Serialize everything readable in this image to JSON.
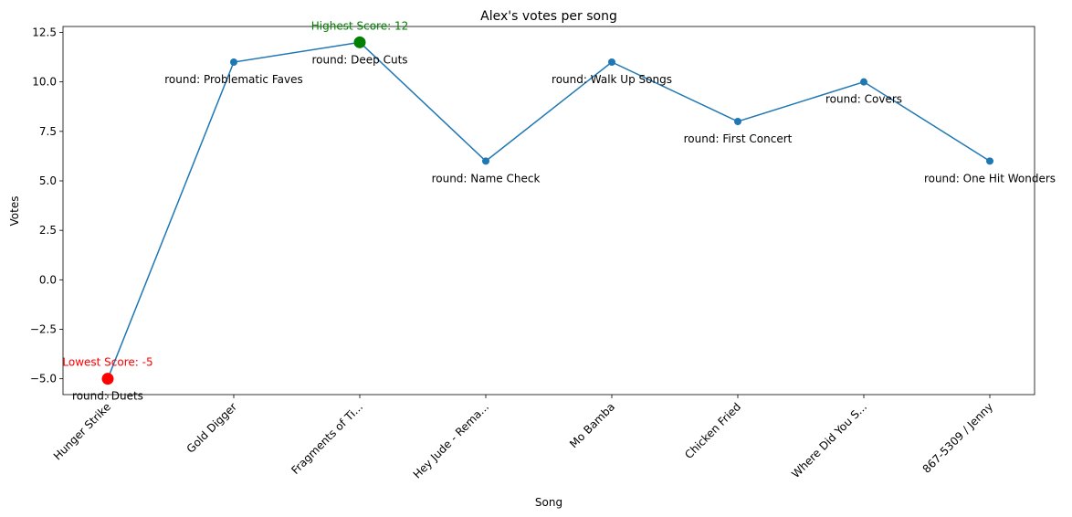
{
  "chart_data": {
    "type": "line",
    "title": "Alex's votes per song",
    "xlabel": "Song",
    "ylabel": "Votes",
    "categories": [
      "Hunger Strike",
      "Gold Digger",
      "Fragments of Ti...",
      "Hey Jude - Rema...",
      "Mo Bamba",
      "Chicken Fried",
      "Where Did You S...",
      "867-5309 / Jenny"
    ],
    "values": [
      -5,
      11,
      12,
      6,
      11,
      8,
      10,
      6
    ],
    "point_labels": [
      "round: Duets",
      "round: Problematic Faves",
      "round: Deep Cuts",
      "round: Name Check",
      "round: Walk Up Songs",
      "round: First Concert",
      "round: Covers",
      "round: One Hit Wonders"
    ],
    "ylim": [
      -5.8,
      12.8
    ],
    "yticks": [
      -5.0,
      -2.5,
      0.0,
      2.5,
      5.0,
      7.5,
      10.0,
      12.5
    ],
    "ytick_labels": [
      "−5.0",
      "−2.5",
      "0.0",
      "2.5",
      "5.0",
      "7.5",
      "10.0",
      "12.5"
    ],
    "grid": false,
    "highlights": {
      "max": {
        "index": 2,
        "label": "Highest Score: 12",
        "color": "#008000"
      },
      "min": {
        "index": 0,
        "label": "Lowest Score: -5",
        "color": "#ff0000"
      }
    },
    "line_color": "#1f77b4"
  }
}
